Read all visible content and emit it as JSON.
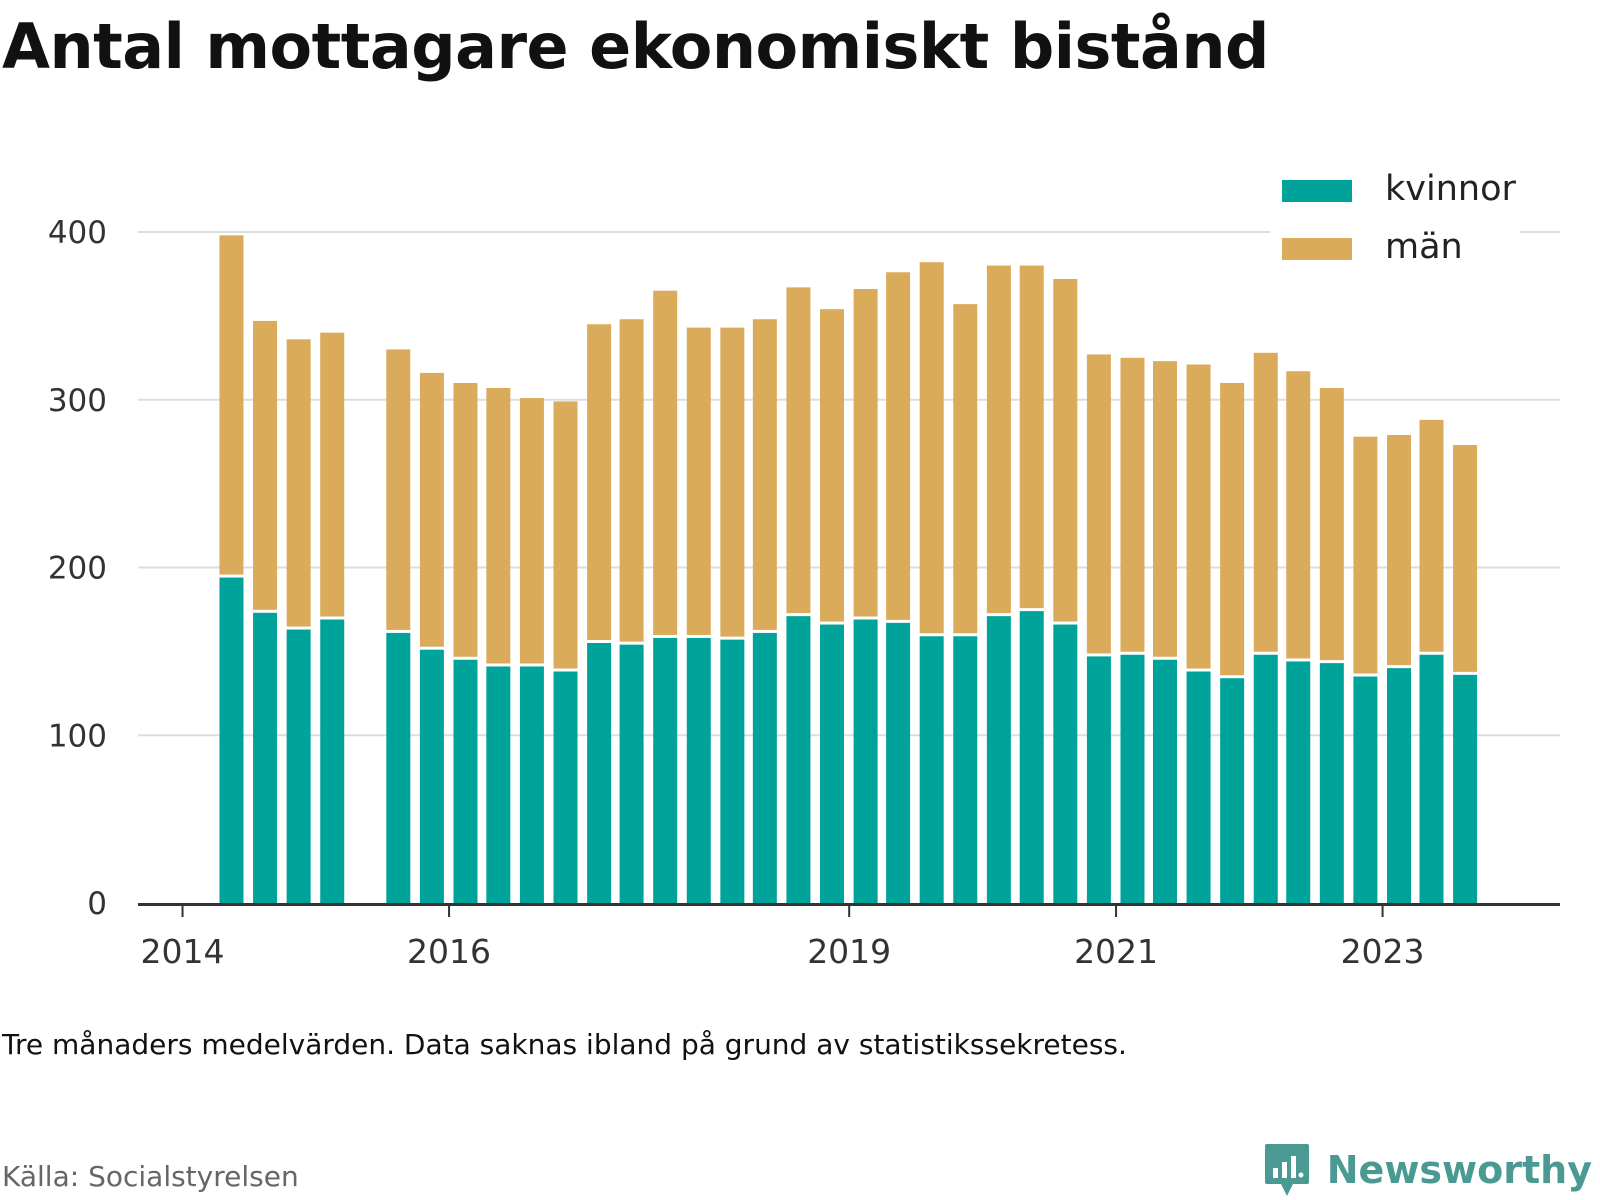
{
  "title": "Antal mottagare ekonomiskt bistånd",
  "note": "Tre månaders medelvärden. Data saknas ibland på grund av statistikssekretess.",
  "source": "Källa: Socialstyrelsen",
  "brand": "Newsworthy",
  "colors": {
    "kvinnor": "#00a39a",
    "man": "#d9ab5a",
    "grid": "#dddddd",
    "axis": "#333333",
    "brand": "#4a9a93"
  },
  "chart_data": {
    "type": "bar",
    "stacked": true,
    "legend_position": "top-right",
    "grid": true,
    "ylim": [
      0,
      400
    ],
    "yticks": [
      0,
      100,
      200,
      300,
      400
    ],
    "xlim": [
      "2013-09-01",
      "2024-05-01"
    ],
    "xticks": [
      {
        "label": "2014",
        "date": "2014-01-01"
      },
      {
        "label": "2016",
        "date": "2016-01-01"
      },
      {
        "label": "2019",
        "date": "2019-01-01"
      },
      {
        "label": "2021",
        "date": "2021-01-01"
      },
      {
        "label": "2023",
        "date": "2023-01-01"
      }
    ],
    "categories": [
      "2014-05",
      "2014-08",
      "2014-11",
      "2015-02",
      "2015-08",
      "2015-11",
      "2016-02",
      "2016-05",
      "2016-08",
      "2016-11",
      "2017-02",
      "2017-05",
      "2017-08",
      "2017-11",
      "2018-02",
      "2018-05",
      "2018-08",
      "2018-11",
      "2019-02",
      "2019-05",
      "2019-08",
      "2019-11",
      "2020-02",
      "2020-05",
      "2020-08",
      "2020-11",
      "2021-02",
      "2021-05",
      "2021-08",
      "2021-11",
      "2022-02",
      "2022-05",
      "2022-08",
      "2022-11",
      "2023-02",
      "2023-05",
      "2023-08"
    ],
    "series": [
      {
        "name": "kvinnor",
        "values": [
          194,
          173,
          163,
          169,
          161,
          151,
          145,
          141,
          141,
          138,
          155,
          154,
          158,
          158,
          157,
          161,
          171,
          166,
          169,
          167,
          159,
          159,
          171,
          174,
          166,
          147,
          148,
          145,
          138,
          134,
          148,
          144,
          143,
          135,
          140,
          148,
          136
        ]
      },
      {
        "name": "män",
        "values": [
          204,
          174,
          173,
          171,
          169,
          165,
          165,
          166,
          160,
          161,
          190,
          194,
          207,
          185,
          186,
          187,
          196,
          188,
          197,
          209,
          223,
          198,
          209,
          206,
          206,
          180,
          177,
          178,
          183,
          176,
          180,
          173,
          164,
          143,
          139,
          140,
          137
        ]
      }
    ]
  }
}
